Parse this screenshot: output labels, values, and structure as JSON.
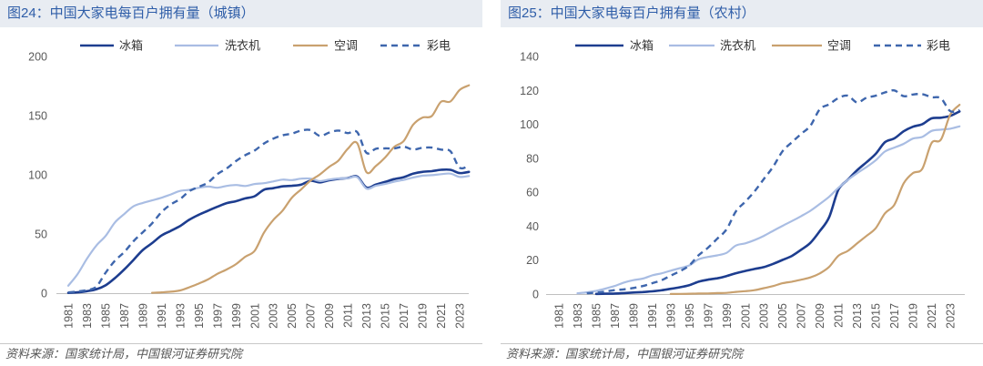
{
  "chart_data": [
    {
      "type": "line",
      "title": "图24：中国大家电每百户拥有量（城镇）",
      "source": "资料来源：国家统计局，中国银河证券研究院",
      "xlabel": "",
      "ylabel": "",
      "legend": "top",
      "ylim": [
        0,
        200
      ],
      "yticks": [
        0,
        50,
        100,
        150,
        200
      ],
      "xticks": [
        "1981",
        "1983",
        "1985",
        "1987",
        "1989",
        "1991",
        "1993",
        "1995",
        "1997",
        "1999",
        "2001",
        "2003",
        "2005",
        "2007",
        "2009",
        "2011",
        "2013",
        "2015",
        "2017",
        "2019",
        "2021",
        "2023"
      ],
      "x": [
        1981,
        1982,
        1983,
        1984,
        1985,
        1986,
        1987,
        1988,
        1989,
        1990,
        1991,
        1992,
        1993,
        1994,
        1995,
        1996,
        1997,
        1998,
        1999,
        2000,
        2001,
        2002,
        2003,
        2004,
        2005,
        2006,
        2007,
        2008,
        2009,
        2010,
        2011,
        2012,
        2013,
        2014,
        2015,
        2016,
        2017,
        2018,
        2019,
        2020,
        2021,
        2022,
        2023,
        2024
      ],
      "series": [
        {
          "name": "冰箱",
          "color": "#1d3d8f",
          "dashed": false,
          "values": [
            0.2,
            0.7,
            1.7,
            3.2,
            6.6,
            12.7,
            19.9,
            28.1,
            36.5,
            42.3,
            48.7,
            52.6,
            56.7,
            62.1,
            66.2,
            69.7,
            73.0,
            76.1,
            77.7,
            80.1,
            81.9,
            87.4,
            88.7,
            90.2,
            90.7,
            91.8,
            95.0,
            93.6,
            95.4,
            96.6,
            97.2,
            98.5,
            89.2,
            91.7,
            94.0,
            96.4,
            98.0,
            100.9,
            102.5,
            103.1,
            104.2,
            104.2,
            101.5,
            102.5
          ]
        },
        {
          "name": "洗衣机",
          "color": "#a9bde3",
          "dashed": false,
          "values": [
            6.3,
            16.1,
            29.1,
            40.1,
            48.3,
            59.7,
            66.8,
            73.4,
            76.2,
            78.4,
            80.6,
            83.4,
            86.4,
            87.3,
            89.0,
            90.1,
            89.1,
            90.6,
            91.4,
            90.5,
            92.2,
            92.9,
            94.4,
            95.9,
            95.5,
            96.8,
            96.8,
            94.7,
            96.0,
            96.9,
            97.1,
            98.0,
            88.4,
            90.7,
            92.3,
            94.2,
            95.7,
            97.7,
            99.2,
            99.7,
            100.5,
            101.0,
            98.2,
            99.0
          ]
        },
        {
          "name": "空调",
          "color": "#c9a16f",
          "dashed": false,
          "values": [
            null,
            null,
            null,
            null,
            null,
            null,
            null,
            null,
            null,
            0.3,
            0.7,
            1.2,
            2.3,
            5.0,
            8.1,
            11.6,
            16.3,
            20.0,
            24.5,
            30.8,
            35.8,
            51.1,
            61.8,
            69.8,
            80.7,
            87.8,
            95.1,
            100.3,
            106.8,
            112.1,
            122.0,
            126.8,
            102.2,
            107.4,
            114.6,
            123.7,
            128.6,
            142.2,
            148.3,
            149.6,
            161.7,
            161.9,
            171.7,
            175.6
          ]
        },
        {
          "name": "彩电",
          "color": "#3e66ad",
          "dashed": true,
          "values": [
            0.6,
            1.5,
            2.6,
            5.4,
            17.2,
            27.4,
            34.6,
            43.9,
            51.5,
            59.0,
            68.4,
            74.9,
            79.5,
            86.2,
            89.8,
            93.5,
            100.5,
            105.4,
            111.6,
            116.6,
            120.5,
            126.4,
            130.5,
            133.4,
            134.8,
            137.4,
            137.8,
            132.9,
            135.7,
            137.4,
            135.2,
            136.1,
            118.6,
            122.0,
            122.3,
            122.3,
            123.8,
            121.3,
            122.8,
            123.0,
            121.3,
            120.0,
            106.0,
            107.9
          ]
        }
      ]
    },
    {
      "type": "line",
      "title": "图25：中国大家电每百户拥有量（农村）",
      "source": "资料来源：国家统计局，中国银河证券研究院",
      "xlabel": "",
      "ylabel": "",
      "legend": "top",
      "ylim": [
        0,
        140
      ],
      "yticks": [
        0,
        20,
        40,
        60,
        80,
        100,
        120,
        140
      ],
      "xticks": [
        "1981",
        "1983",
        "1985",
        "1987",
        "1989",
        "1991",
        "1993",
        "1995",
        "1997",
        "1999",
        "2001",
        "2003",
        "2005",
        "2007",
        "2009",
        "2011",
        "2013",
        "2015",
        "2017",
        "2019",
        "2021",
        "2023"
      ],
      "x": [
        1981,
        1982,
        1983,
        1984,
        1985,
        1986,
        1987,
        1988,
        1989,
        1990,
        1991,
        1992,
        1993,
        1994,
        1995,
        1996,
        1997,
        1998,
        1999,
        2000,
        2001,
        2002,
        2003,
        2004,
        2005,
        2006,
        2007,
        2008,
        2009,
        2010,
        2011,
        2012,
        2013,
        2014,
        2015,
        2016,
        2017,
        2018,
        2019,
        2020,
        2021,
        2022,
        2023,
        2024
      ],
      "series": [
        {
          "name": "冰箱",
          "color": "#1d3d8f",
          "dashed": false,
          "values": [
            null,
            null,
            null,
            null,
            0.1,
            0.2,
            0.3,
            0.6,
            0.9,
            1.2,
            1.6,
            2.2,
            3.1,
            4.0,
            5.2,
            7.3,
            8.5,
            9.3,
            10.6,
            12.3,
            13.6,
            14.8,
            15.9,
            17.8,
            20.1,
            22.5,
            26.1,
            30.2,
            37.1,
            45.2,
            61.5,
            67.3,
            72.9,
            77.6,
            82.6,
            89.5,
            91.7,
            95.9,
            98.6,
            100.1,
            103.5,
            103.9,
            105.0,
            107.6
          ]
        },
        {
          "name": "洗衣机",
          "color": "#a9bde3",
          "dashed": false,
          "values": [
            null,
            null,
            0.5,
            1.0,
            1.9,
            3.2,
            4.8,
            6.8,
            8.2,
            9.1,
            11.0,
            12.2,
            13.8,
            15.3,
            16.9,
            20.5,
            21.9,
            22.8,
            24.3,
            28.6,
            29.9,
            31.8,
            34.3,
            37.3,
            40.2,
            43.0,
            45.9,
            49.1,
            53.1,
            57.3,
            62.6,
            67.2,
            71.2,
            74.8,
            78.8,
            84.0,
            86.3,
            88.5,
            91.6,
            92.6,
            96.1,
            96.9,
            97.4,
            98.8
          ]
        },
        {
          "name": "空调",
          "color": "#c9a16f",
          "dashed": false,
          "values": [
            null,
            null,
            null,
            null,
            null,
            null,
            null,
            null,
            null,
            null,
            null,
            null,
            0.05,
            0.1,
            0.2,
            0.3,
            0.4,
            0.6,
            0.7,
            1.3,
            1.7,
            2.3,
            3.5,
            4.7,
            6.4,
            7.3,
            8.5,
            9.8,
            12.2,
            16.0,
            22.6,
            25.4,
            29.8,
            34.2,
            38.8,
            47.6,
            52.6,
            65.2,
            71.3,
            73.8,
            89.0,
            91.0,
            105.7,
            111.5
          ]
        },
        {
          "name": "彩电",
          "color": "#3e66ad",
          "dashed": true,
          "values": [
            null,
            null,
            null,
            0.5,
            0.8,
            1.5,
            2.3,
            2.8,
            3.6,
            4.7,
            6.4,
            8.1,
            10.9,
            13.5,
            16.9,
            22.9,
            27.3,
            32.6,
            38.2,
            48.7,
            54.4,
            60.5,
            67.8,
            75.1,
            84.1,
            89.4,
            94.4,
            99.2,
            108.9,
            111.8,
            115.5,
            116.9,
            112.9,
            115.6,
            116.9,
            118.8,
            120.0,
            116.6,
            117.6,
            117.8,
            116.0,
            115.3,
            107.8,
            108.3
          ]
        }
      ]
    }
  ]
}
